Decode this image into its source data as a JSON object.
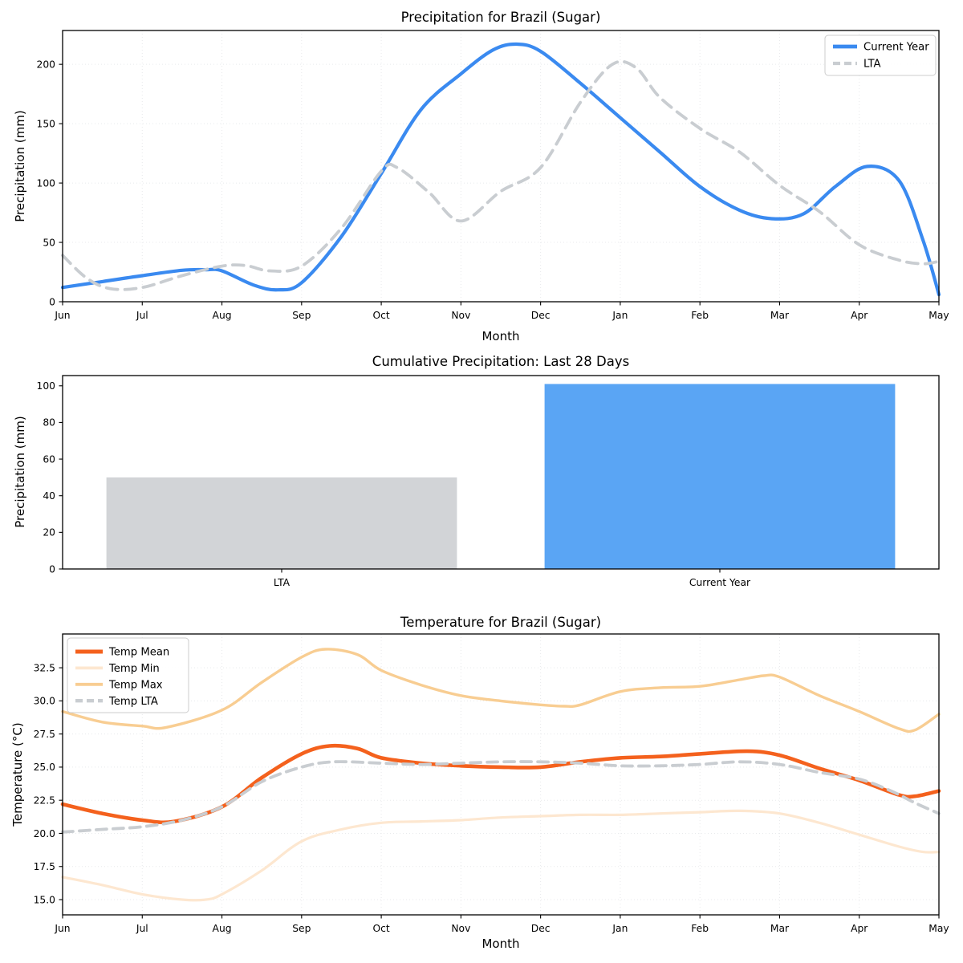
{
  "figure": {
    "background": "#ffffff",
    "accent_blue": "#3a8af0",
    "bar_blue": "#5aa5f4",
    "lta_gray": "#c9cdd1",
    "bar_gray": "#d2d4d7",
    "mean_orange": "#f4611d",
    "max_peach": "#f8cd92",
    "min_pale": "#fde7d0",
    "grid_color": "#e8eaec"
  },
  "chart_data": [
    {
      "id": "precipitation",
      "type": "line",
      "title": "Precipitation for Brazil (Sugar)",
      "xlabel": "Month",
      "ylabel": "Precipitation (mm)",
      "x_tick_labels": [
        "Jun",
        "Jul",
        "Aug",
        "Sep",
        "Oct",
        "Nov",
        "Dec",
        "Jan",
        "Feb",
        "Mar",
        "Apr",
        "May"
      ],
      "y_ticks": [
        0,
        50,
        100,
        150,
        200
      ],
      "y_tick_decimals": 0,
      "xlim": [
        0,
        11
      ],
      "ylim": [
        0,
        228.5
      ],
      "grid": true,
      "legend": {
        "position": "upper-right",
        "entries": [
          "Current Year",
          "LTA"
        ]
      },
      "series": [
        {
          "name": "Current Year",
          "color": "#3a8af0",
          "width": 4.2,
          "dash": null,
          "points": [
            [
              0,
              12
            ],
            [
              0.5,
              17
            ],
            [
              1,
              22
            ],
            [
              1.5,
              26.5
            ],
            [
              1.8,
              27
            ],
            [
              2,
              26
            ],
            [
              2.4,
              14
            ],
            [
              2.7,
              10
            ],
            [
              3,
              16
            ],
            [
              3.5,
              55
            ],
            [
              4,
              108
            ],
            [
              4.5,
              162
            ],
            [
              5,
              192
            ],
            [
              5.4,
              212
            ],
            [
              5.7,
              217
            ],
            [
              6,
              211
            ],
            [
              6.5,
              184
            ],
            [
              7,
              155
            ],
            [
              7.5,
              126
            ],
            [
              8,
              97
            ],
            [
              8.5,
              77
            ],
            [
              8.9,
              70
            ],
            [
              9.3,
              74
            ],
            [
              9.7,
              97
            ],
            [
              10.1,
              114
            ],
            [
              10.5,
              102
            ],
            [
              10.8,
              52
            ],
            [
              11,
              6
            ]
          ]
        },
        {
          "name": "LTA",
          "color": "#c9cdd1",
          "width": 3.8,
          "dash": [
            14,
            9
          ],
          "points": [
            [
              0,
              39
            ],
            [
              0.3,
              20
            ],
            [
              0.6,
              11
            ],
            [
              1,
              12
            ],
            [
              1.5,
              22
            ],
            [
              2,
              30
            ],
            [
              2.3,
              30.5
            ],
            [
              2.6,
              26
            ],
            [
              3,
              30
            ],
            [
              3.5,
              62
            ],
            [
              4,
              110
            ],
            [
              4.2,
              113
            ],
            [
              4.6,
              92
            ],
            [
              5,
              68
            ],
            [
              5.5,
              93
            ],
            [
              6,
              113
            ],
            [
              6.5,
              168
            ],
            [
              6.9,
              200
            ],
            [
              7.2,
              197
            ],
            [
              7.5,
              172
            ],
            [
              8,
              146
            ],
            [
              8.5,
              126
            ],
            [
              9,
              98
            ],
            [
              9.5,
              76
            ],
            [
              10,
              48
            ],
            [
              10.5,
              35
            ],
            [
              10.8,
              32
            ],
            [
              11,
              34
            ]
          ]
        }
      ]
    },
    {
      "id": "cumulative",
      "type": "bar",
      "title": "Cumulative Precipitation: Last 28 Days",
      "xlabel": "",
      "ylabel": "Precipitation (mm)",
      "categories": [
        "LTA",
        "Current Year"
      ],
      "values": [
        50,
        101
      ],
      "bar_colors": [
        "#d2d4d7",
        "#5aa5f4"
      ],
      "y_ticks": [
        0,
        20,
        40,
        60,
        80,
        100
      ],
      "y_tick_decimals": 0,
      "ylim": [
        0,
        105.6
      ],
      "grid": false
    },
    {
      "id": "temperature",
      "type": "line",
      "title": "Temperature for Brazil (Sugar)",
      "xlabel": "Month",
      "ylabel": "Temperature (°C)",
      "x_tick_labels": [
        "Jun",
        "Jul",
        "Aug",
        "Sep",
        "Oct",
        "Nov",
        "Dec",
        "Jan",
        "Feb",
        "Mar",
        "Apr",
        "May"
      ],
      "y_ticks": [
        15.0,
        17.5,
        20.0,
        22.5,
        25.0,
        27.5,
        30.0,
        32.5
      ],
      "y_tick_decimals": 1,
      "xlim": [
        0,
        11
      ],
      "ylim": [
        13.85,
        35.05
      ],
      "grid": true,
      "legend": {
        "position": "upper-left",
        "entries": [
          "Temp Mean",
          "Temp Min",
          "Temp Max",
          "Temp LTA"
        ]
      },
      "series": [
        {
          "name": "Temp Mean",
          "color": "#f4611d",
          "width": 4.6,
          "dash": null,
          "points": [
            [
              0,
              22.2
            ],
            [
              0.5,
              21.5
            ],
            [
              1,
              21.0
            ],
            [
              1.4,
              20.9
            ],
            [
              2,
              22.0
            ],
            [
              2.5,
              24.2
            ],
            [
              3,
              26.0
            ],
            [
              3.35,
              26.6
            ],
            [
              3.7,
              26.4
            ],
            [
              4,
              25.7
            ],
            [
              4.5,
              25.3
            ],
            [
              5,
              25.1
            ],
            [
              5.5,
              25.0
            ],
            [
              6,
              25.0
            ],
            [
              6.5,
              25.4
            ],
            [
              7,
              25.7
            ],
            [
              7.5,
              25.8
            ],
            [
              8,
              26.0
            ],
            [
              8.6,
              26.2
            ],
            [
              9,
              25.9
            ],
            [
              9.5,
              24.9
            ],
            [
              10,
              24.0
            ],
            [
              10.5,
              22.9
            ],
            [
              10.7,
              22.8
            ],
            [
              11,
              23.2
            ]
          ]
        },
        {
          "name": "Temp Min",
          "color": "#fde7d0",
          "width": 3.2,
          "dash": null,
          "points": [
            [
              0,
              16.7
            ],
            [
              0.5,
              16.1
            ],
            [
              1,
              15.4
            ],
            [
              1.5,
              15.0
            ],
            [
              1.8,
              15.0
            ],
            [
              2,
              15.4
            ],
            [
              2.5,
              17.2
            ],
            [
              3,
              19.4
            ],
            [
              3.5,
              20.3
            ],
            [
              4,
              20.8
            ],
            [
              4.5,
              20.9
            ],
            [
              5,
              21.0
            ],
            [
              5.5,
              21.2
            ],
            [
              6,
              21.3
            ],
            [
              6.5,
              21.4
            ],
            [
              7,
              21.4
            ],
            [
              7.5,
              21.5
            ],
            [
              8,
              21.6
            ],
            [
              8.5,
              21.7
            ],
            [
              9,
              21.5
            ],
            [
              9.5,
              20.8
            ],
            [
              10,
              19.9
            ],
            [
              10.5,
              19.0
            ],
            [
              10.8,
              18.6
            ],
            [
              11,
              18.6
            ]
          ]
        },
        {
          "name": "Temp Max",
          "color": "#f8cd92",
          "width": 3.4,
          "dash": null,
          "points": [
            [
              0,
              29.2
            ],
            [
              0.5,
              28.4
            ],
            [
              1,
              28.1
            ],
            [
              1.3,
              28.0
            ],
            [
              2,
              29.3
            ],
            [
              2.5,
              31.4
            ],
            [
              3,
              33.3
            ],
            [
              3.3,
              33.9
            ],
            [
              3.7,
              33.5
            ],
            [
              4,
              32.3
            ],
            [
              4.5,
              31.2
            ],
            [
              5,
              30.4
            ],
            [
              5.5,
              30.0
            ],
            [
              6,
              29.7
            ],
            [
              6.3,
              29.6
            ],
            [
              6.5,
              29.7
            ],
            [
              7,
              30.7
            ],
            [
              7.5,
              31.0
            ],
            [
              8,
              31.1
            ],
            [
              8.5,
              31.6
            ],
            [
              8.8,
              31.9
            ],
            [
              9,
              31.8
            ],
            [
              9.5,
              30.4
            ],
            [
              10,
              29.2
            ],
            [
              10.5,
              27.9
            ],
            [
              10.7,
              27.8
            ],
            [
              11,
              29.0
            ]
          ]
        },
        {
          "name": "Temp LTA",
          "color": "#c9cdd1",
          "width": 3.8,
          "dash": [
            13,
            8
          ],
          "points": [
            [
              0,
              20.1
            ],
            [
              0.5,
              20.3
            ],
            [
              1,
              20.5
            ],
            [
              1.5,
              21.0
            ],
            [
              2,
              22.0
            ],
            [
              2.5,
              23.9
            ],
            [
              3,
              25.0
            ],
            [
              3.4,
              25.4
            ],
            [
              4,
              25.3
            ],
            [
              4.5,
              25.2
            ],
            [
              5,
              25.3
            ],
            [
              5.5,
              25.4
            ],
            [
              6,
              25.4
            ],
            [
              6.5,
              25.3
            ],
            [
              7,
              25.1
            ],
            [
              7.5,
              25.1
            ],
            [
              8,
              25.2
            ],
            [
              8.5,
              25.4
            ],
            [
              9,
              25.2
            ],
            [
              9.5,
              24.6
            ],
            [
              10,
              24.1
            ],
            [
              10.4,
              23.2
            ],
            [
              10.7,
              22.3
            ],
            [
              11,
              21.5
            ]
          ]
        }
      ]
    }
  ]
}
